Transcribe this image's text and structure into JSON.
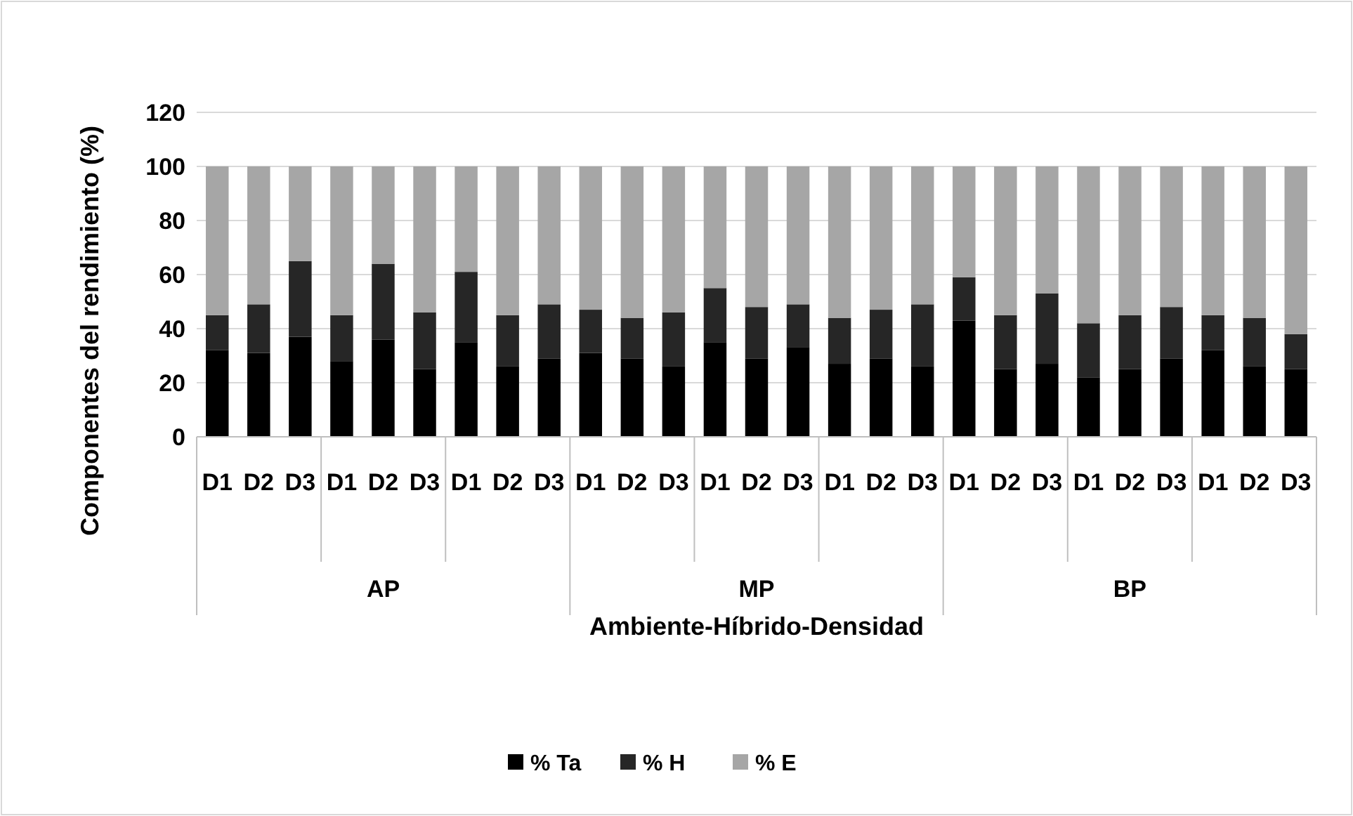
{
  "chart_data": {
    "type": "bar",
    "stacked": true,
    "xlabel": "Ambiente-Híbrido-Densidad",
    "ylabel": "Componentes del rendimiento (%)",
    "categories": [
      "D1",
      "D2",
      "D3",
      "D1",
      "D2",
      "D3",
      "D1",
      "D2",
      "D3",
      "D1",
      "D2",
      "D3",
      "D1",
      "D2",
      "D3",
      "D1",
      "D2",
      "D3",
      "D1",
      "D2",
      "D3",
      "D1",
      "D2",
      "D3",
      "D1",
      "D2",
      "D3"
    ],
    "annotations": [
      "AP",
      "MP",
      "BP"
    ],
    "series": [
      {
        "name": "% Ta",
        "color": "#000000",
        "values": [
          32,
          31,
          37,
          28,
          36,
          25,
          35,
          26,
          29,
          31,
          29,
          26,
          35,
          29,
          33,
          27,
          29,
          26,
          43,
          25,
          27,
          22,
          25,
          29,
          32,
          26,
          25
        ]
      },
      {
        "name": "% H",
        "color": "#262626",
        "values": [
          13,
          18,
          28,
          17,
          28,
          21,
          26,
          19,
          20,
          16,
          15,
          20,
          20,
          19,
          16,
          17,
          18,
          23,
          16,
          20,
          26,
          20,
          20,
          19,
          13,
          18,
          13
        ]
      },
      {
        "name": "% E",
        "color": "#a6a6a6",
        "values": [
          55,
          51,
          35,
          55,
          36,
          54,
          39,
          55,
          51,
          53,
          56,
          54,
          45,
          52,
          51,
          56,
          53,
          51,
          41,
          55,
          47,
          58,
          55,
          52,
          55,
          56,
          62
        ]
      }
    ],
    "ylim": [
      0,
      120
    ],
    "yticks": [
      0,
      20,
      40,
      60,
      80,
      100,
      120
    ],
    "grid": "y",
    "legend": "bottom"
  }
}
